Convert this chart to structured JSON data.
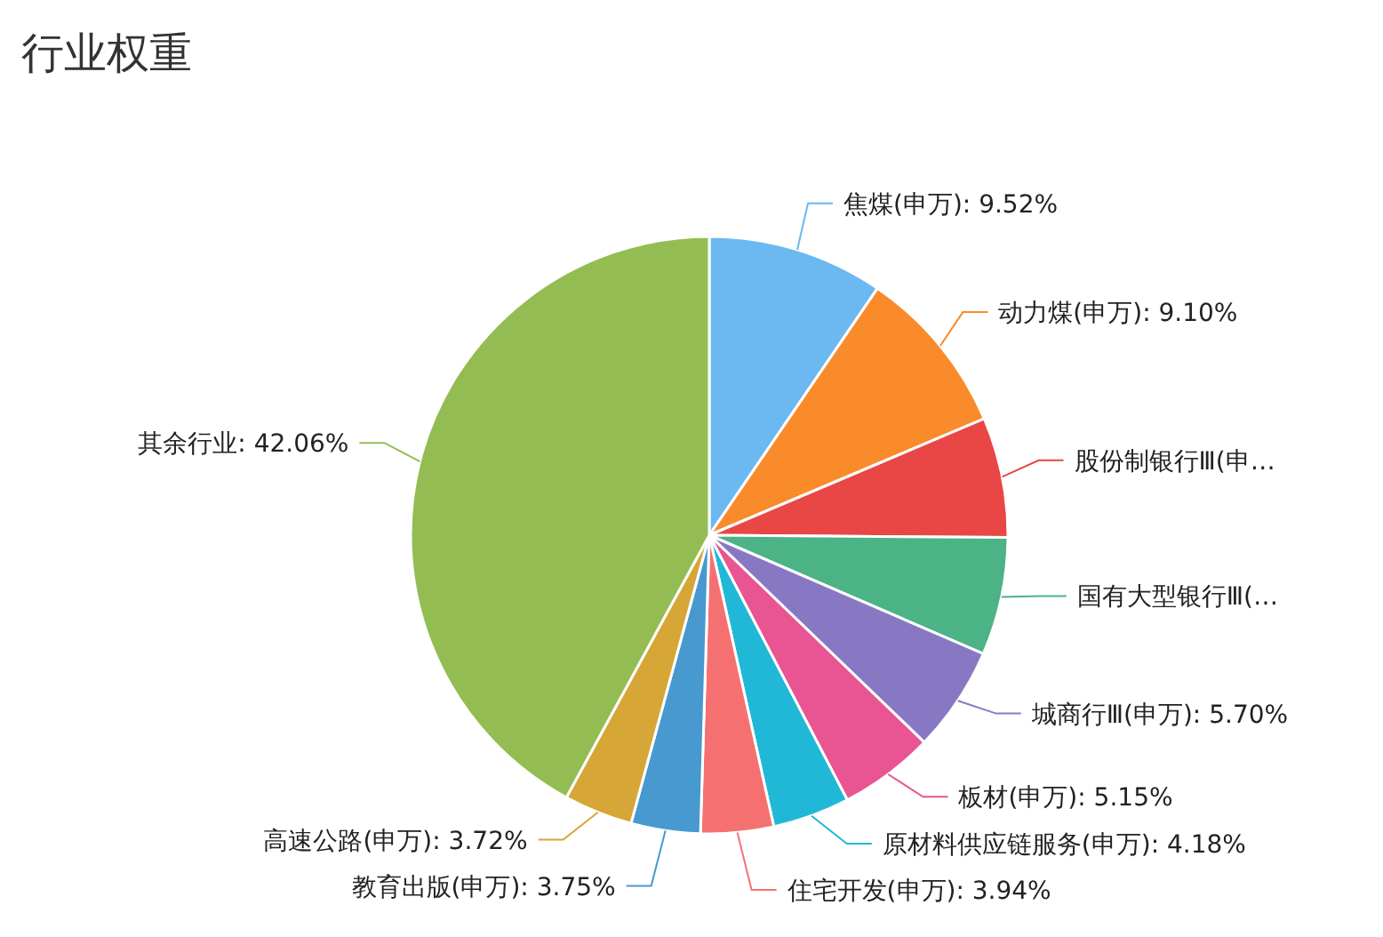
{
  "chart_data": {
    "type": "pie",
    "title": "行业权重",
    "categories": [
      "焦煤(申万)",
      "动力煤(申万)",
      "股份制银行Ⅲ(申…",
      "国有大型银行Ⅲ(…",
      "城商行Ⅲ(申万)",
      "板材(申万)",
      "原材料供应链服务(申万)",
      "住宅开发(申万)",
      "教育出版(申万)",
      "高速公路(申万)",
      "其余行业"
    ],
    "values": [
      9.52,
      9.1,
      6.5,
      6.38,
      5.7,
      5.15,
      4.18,
      3.94,
      3.75,
      3.72,
      42.06
    ],
    "value_labels": [
      "9.52%",
      "9.10%",
      null,
      null,
      "5.70%",
      "5.15%",
      "4.18%",
      "3.94%",
      "3.75%",
      "3.72%",
      "42.06%"
    ],
    "colors": [
      "#6cb8f0",
      "#f98b2a",
      "#e94646",
      "#4bb385",
      "#8878c4",
      "#e85592",
      "#21b8d8",
      "#f57171",
      "#4799d0",
      "#d6a636",
      "#93bd53"
    ],
    "legend": false
  }
}
